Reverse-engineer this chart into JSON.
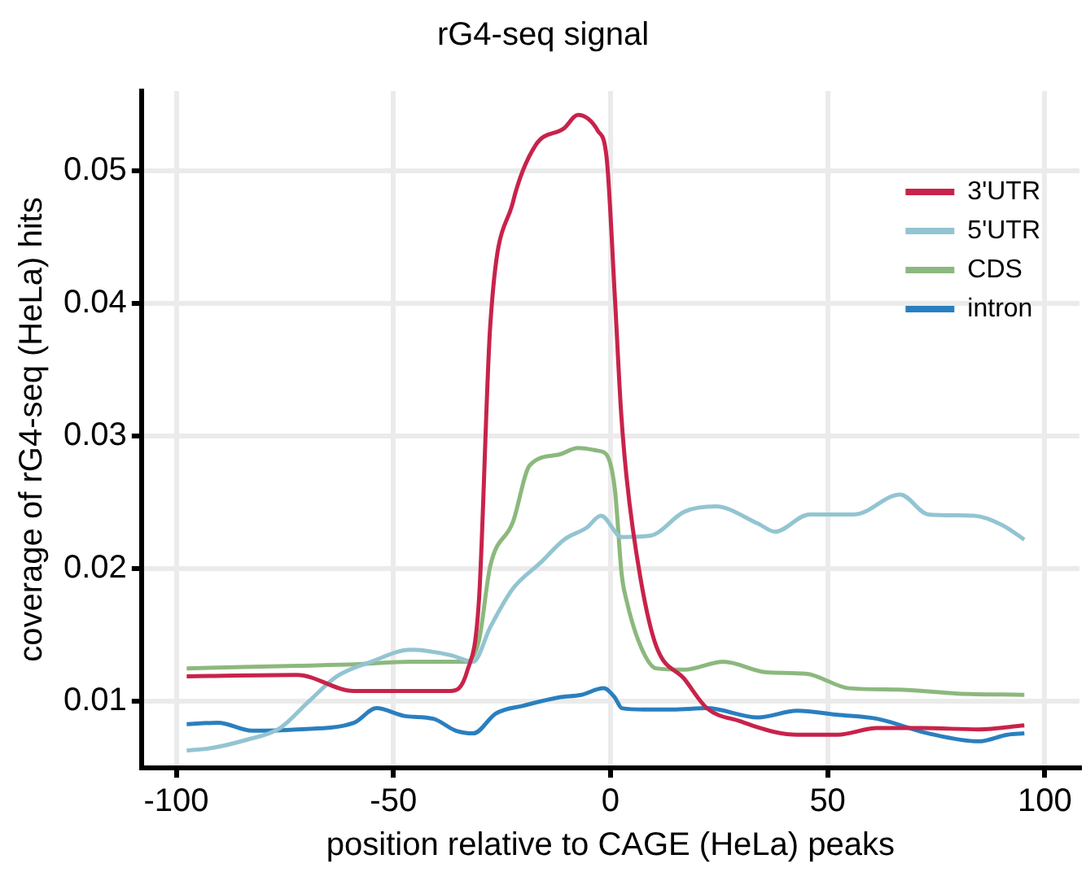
{
  "chart_data": {
    "type": "line",
    "title": "rG4-seq signal",
    "xlabel": "position relative to CAGE (HeLa) peaks",
    "ylabel": "coverage of rG4-seq (HeLa) hits",
    "xlim": [
      -108,
      108
    ],
    "xticks": [
      -100,
      -50,
      0,
      50,
      100
    ],
    "ylim": [
      0.005,
      0.056
    ],
    "yticks": [
      0.01,
      0.02,
      0.03,
      0.04,
      0.05
    ],
    "grid": true,
    "legend": "top right",
    "series": [
      {
        "name": "3'UTR",
        "color": "#c8234a",
        "x": [
          -97.6,
          -72.2,
          -59.1,
          -46.1,
          -36.9,
          -33,
          -30.3,
          -27.7,
          -22.5,
          -17.3,
          -10.7,
          -7.5,
          -2.9,
          -0.9,
          1,
          2.4,
          3.7,
          6.9,
          10.5,
          17,
          22.2,
          30,
          37.9,
          43,
          52.3,
          61.4,
          71.8,
          84.8,
          95.3
        ],
        "values": [
          0.0119,
          0.012,
          0.0108,
          0.0108,
          0.0108,
          0.0123,
          0.0176,
          0.0383,
          0.0476,
          0.0519,
          0.0532,
          0.0542,
          0.053,
          0.051,
          0.0405,
          0.032,
          0.0269,
          0.0193,
          0.0142,
          0.0117,
          0.0095,
          0.0085,
          0.0077,
          0.0075,
          0.0075,
          0.008,
          0.008,
          0.0079,
          0.0082
        ]
      },
      {
        "name": "5'UTR",
        "color": "#93c4d2",
        "x": [
          -97.6,
          -91.8,
          -84,
          -76.1,
          -69.5,
          -63,
          -55.1,
          -46,
          -36.9,
          -31.6,
          -27.7,
          -22.5,
          -16,
          -10.7,
          -5.5,
          -2.2,
          2.6,
          9.2,
          17,
          24.2,
          34,
          37.9,
          45.8,
          56.2,
          66.7,
          73.2,
          83.7,
          90.2,
          95.3
        ],
        "values": [
          0.0063,
          0.0065,
          0.0071,
          0.008,
          0.01,
          0.0119,
          0.013,
          0.0139,
          0.0135,
          0.013,
          0.0156,
          0.0185,
          0.0205,
          0.0222,
          0.0231,
          0.024,
          0.0224,
          0.0225,
          0.0243,
          0.0247,
          0.0234,
          0.0228,
          0.0241,
          0.0241,
          0.0256,
          0.0241,
          0.024,
          0.0233,
          0.0222
        ]
      },
      {
        "name": "CDS",
        "color": "#8cb87e",
        "x": [
          -97.6,
          -72.2,
          -59.1,
          -46.1,
          -33,
          -30.3,
          -27.7,
          -22.5,
          -18.6,
          -12,
          -7.5,
          -2.9,
          -0.9,
          1,
          2.6,
          3.7,
          6.9,
          10.5,
          17,
          26,
          36,
          45,
          55,
          66,
          80,
          95.3
        ],
        "values": [
          0.0125,
          0.0127,
          0.0128,
          0.013,
          0.013,
          0.0146,
          0.0202,
          0.0235,
          0.0278,
          0.0286,
          0.0291,
          0.0289,
          0.0286,
          0.026,
          0.0195,
          0.0176,
          0.0142,
          0.0125,
          0.0124,
          0.013,
          0.0122,
          0.0121,
          0.011,
          0.0109,
          0.0106,
          0.0105
        ]
      },
      {
        "name": "intron",
        "color": "#2a7fbf",
        "x": [
          -97.6,
          -90.4,
          -82.5,
          -72.2,
          -59.1,
          -53.9,
          -47.3,
          -40.8,
          -35.6,
          -31.6,
          -26.4,
          -19.9,
          -12,
          -6.8,
          -1.6,
          1,
          2.6,
          7.8,
          14.3,
          22.2,
          34,
          43,
          52.3,
          61.4,
          73.2,
          84.8,
          91.4,
          95.3
        ],
        "values": [
          0.0083,
          0.0084,
          0.0078,
          0.0079,
          0.0084,
          0.0095,
          0.0089,
          0.0087,
          0.0078,
          0.0076,
          0.0091,
          0.0097,
          0.0103,
          0.0105,
          0.011,
          0.0103,
          0.0095,
          0.0094,
          0.0094,
          0.0095,
          0.0088,
          0.0093,
          0.009,
          0.0087,
          0.0076,
          0.007,
          0.0075,
          0.0076
        ]
      }
    ]
  }
}
